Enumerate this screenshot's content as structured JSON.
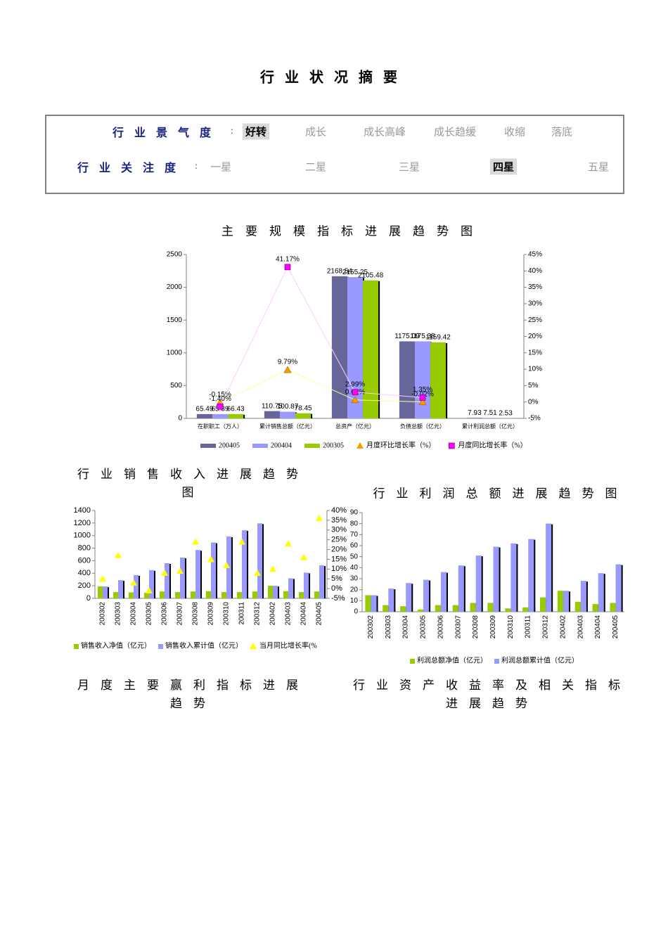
{
  "header": {
    "title": "行业状况摘要"
  },
  "summary": {
    "rows": [
      {
        "label": "行业景气度",
        "separator": ":",
        "options": [
          "好转",
          "成长",
          "成长高峰",
          "成长趋缓",
          "收缩",
          "落底"
        ],
        "selected": 0
      },
      {
        "label": "行业关注度",
        "separator": ":",
        "options": [
          "一星",
          "二星",
          "三星",
          "四星",
          "五星"
        ],
        "selected": 3
      }
    ]
  },
  "chart_data": [
    {
      "type": "bar",
      "title": "主要规模指标进展趋势图",
      "categories": [
        "在职职工（万人）",
        "累计销售总额（亿元）",
        "总资产（亿元）",
        "负债总额（亿元）",
        "累计利润总额（亿元）"
      ],
      "series": [
        {
          "name": "200405",
          "color": "#666699",
          "values": [
            65.49,
            110.75,
            2168.54,
            1175.09,
            7.93
          ]
        },
        {
          "name": "200404",
          "color": "#9999ff",
          "values": [
            65.39,
            100.87,
            2155.25,
            1175.38,
            7.51
          ]
        },
        {
          "name": "200305",
          "color": "#99cc00",
          "values": [
            66.43,
            78.45,
            2105.48,
            1159.42,
            2.53
          ]
        },
        {
          "name": "月度环比增长率（%）",
          "type": "line",
          "axis": "y2",
          "marker": "triangle",
          "color": "#ff9900",
          "line_color": "#ffff99",
          "values": [
            -0.15,
            9.79,
            0.62,
            -0.02,
            null
          ],
          "value_labels": [
            "-0.15%",
            "9.79%",
            "0.62%",
            "-0.02%",
            null
          ]
        },
        {
          "name": "月度同比增长率（%）",
          "type": "line",
          "axis": "y2",
          "marker": "square",
          "color": "#ff00ff",
          "line_color": "#ffccff",
          "values": [
            -1.4,
            41.17,
            2.99,
            1.35,
            null
          ],
          "value_labels": [
            "-1.40%",
            "41.17%",
            "2.99%",
            "1.35%",
            null
          ]
        }
      ],
      "ylim": [
        0,
        2500
      ],
      "yticks": [
        0,
        500,
        1000,
        1500,
        2000,
        2500
      ],
      "y2lim": [
        -5,
        45
      ],
      "y2ticks": [
        {
          "value": -5,
          "label": "-5%"
        },
        {
          "value": 0,
          "label": "0%"
        },
        {
          "value": 5,
          "label": "5%"
        },
        {
          "value": 10,
          "label": "10%"
        },
        {
          "value": 15,
          "label": "15%"
        },
        {
          "value": 20,
          "label": "20%"
        },
        {
          "value": 25,
          "label": "25%"
        },
        {
          "value": 30,
          "label": "30%"
        },
        {
          "value": 35,
          "label": "35%"
        },
        {
          "value": 40,
          "label": "40%"
        },
        {
          "value": 45,
          "label": "45%"
        }
      ],
      "data_labels": true,
      "show_line": true
    },
    {
      "type": "bar",
      "title": "行业销售收入进展趋势图",
      "categories": [
        "200302",
        "200303",
        "200304",
        "200305",
        "200306",
        "200307",
        "200308",
        "200309",
        "200310",
        "200311",
        "200312",
        "200402",
        "200403",
        "200404",
        "200405"
      ],
      "series": [
        {
          "name": "销售收入净值（亿元）",
          "color": "#99cc00",
          "values": [
            190,
            100,
            95,
            90,
            110,
            100,
            110,
            115,
            100,
            100,
            110,
            200,
            115,
            100,
            110
          ]
        },
        {
          "name": "销售收入累计值（亿元）",
          "color": "#9999ff",
          "values": [
            190,
            290,
            370,
            450,
            560,
            650,
            770,
            890,
            985,
            1085,
            1195,
            200,
            320,
            410,
            525
          ]
        },
        {
          "name": "当月同比增长率(%",
          "type": "line",
          "axis": "y2",
          "marker": "triangle",
          "color": "#ffff00",
          "values": [
            5,
            17,
            3,
            -1,
            8,
            9,
            24,
            15,
            12,
            24,
            8,
            10,
            23,
            16,
            36
          ]
        }
      ],
      "ylim": [
        0,
        1400
      ],
      "yticks": [
        0,
        200,
        400,
        600,
        800,
        1000,
        1200,
        1400
      ],
      "y2lim": [
        -5,
        40
      ],
      "y2ticks": [
        {
          "value": -5,
          "label": "-5%"
        },
        {
          "value": 0,
          "label": "0%"
        },
        {
          "value": 5,
          "label": "5%"
        },
        {
          "value": 10,
          "label": "10%"
        },
        {
          "value": 15,
          "label": "15%"
        },
        {
          "value": 20,
          "label": "20%"
        },
        {
          "value": 25,
          "label": "25%"
        },
        {
          "value": 30,
          "label": "30%"
        },
        {
          "value": 35,
          "label": "35%"
        },
        {
          "value": 40,
          "label": "40%"
        }
      ],
      "data_labels": false,
      "show_line": false
    },
    {
      "type": "bar",
      "title": "行业利润总额进展趋势图",
      "categories": [
        "200302",
        "200303",
        "200304",
        "200305",
        "200306",
        "200307",
        "200308",
        "200309",
        "200310",
        "200311",
        "200312",
        "200402",
        "200403",
        "200404",
        "200405"
      ],
      "series": [
        {
          "name": "利润总额净值（亿元）",
          "color": "#99cc00",
          "values": [
            15,
            6,
            5,
            2,
            6,
            6,
            8,
            8,
            3,
            4,
            13,
            19,
            9,
            7,
            8
          ]
        },
        {
          "name": "利润总额累计值（亿元）",
          "color": "#9999ff",
          "values": [
            15,
            21,
            26,
            29,
            36,
            42,
            51,
            59,
            62,
            66,
            80,
            19,
            28,
            35,
            43
          ]
        }
      ],
      "ylim": [
        0,
        90
      ],
      "yticks": [
        0,
        10,
        20,
        30,
        40,
        50,
        60,
        70,
        80,
        90
      ],
      "data_labels": false
    }
  ],
  "sections": [
    "月度主要赢利指标进展趋势",
    "行业资产收益率及相关指标进展趋势"
  ]
}
